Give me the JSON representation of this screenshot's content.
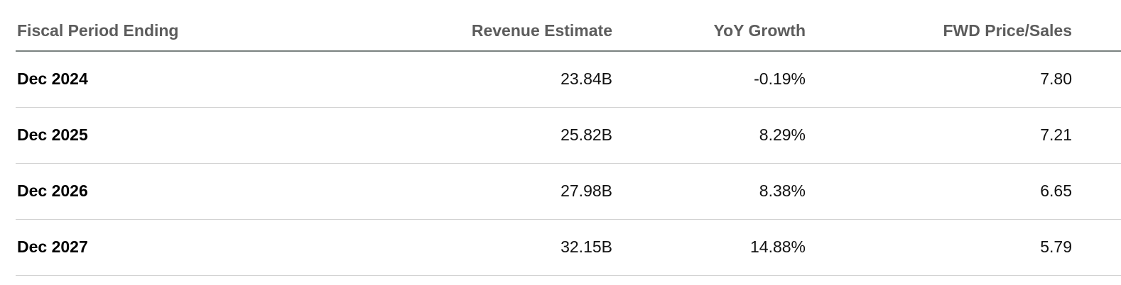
{
  "table": {
    "headers": {
      "period": "Fiscal Period Ending",
      "revenue": "Revenue Estimate",
      "growth": "YoY Growth",
      "ps": "FWD Price/Sales"
    },
    "rows": [
      {
        "period": "Dec 2024",
        "revenue": "23.84B",
        "growth": "-0.19%",
        "ps": "7.80"
      },
      {
        "period": "Dec 2025",
        "revenue": "25.82B",
        "growth": "8.29%",
        "ps": "7.21"
      },
      {
        "period": "Dec 2026",
        "revenue": "27.98B",
        "growth": "8.38%",
        "ps": "6.65"
      },
      {
        "period": "Dec 2027",
        "revenue": "32.15B",
        "growth": "14.88%",
        "ps": "5.79"
      }
    ]
  }
}
